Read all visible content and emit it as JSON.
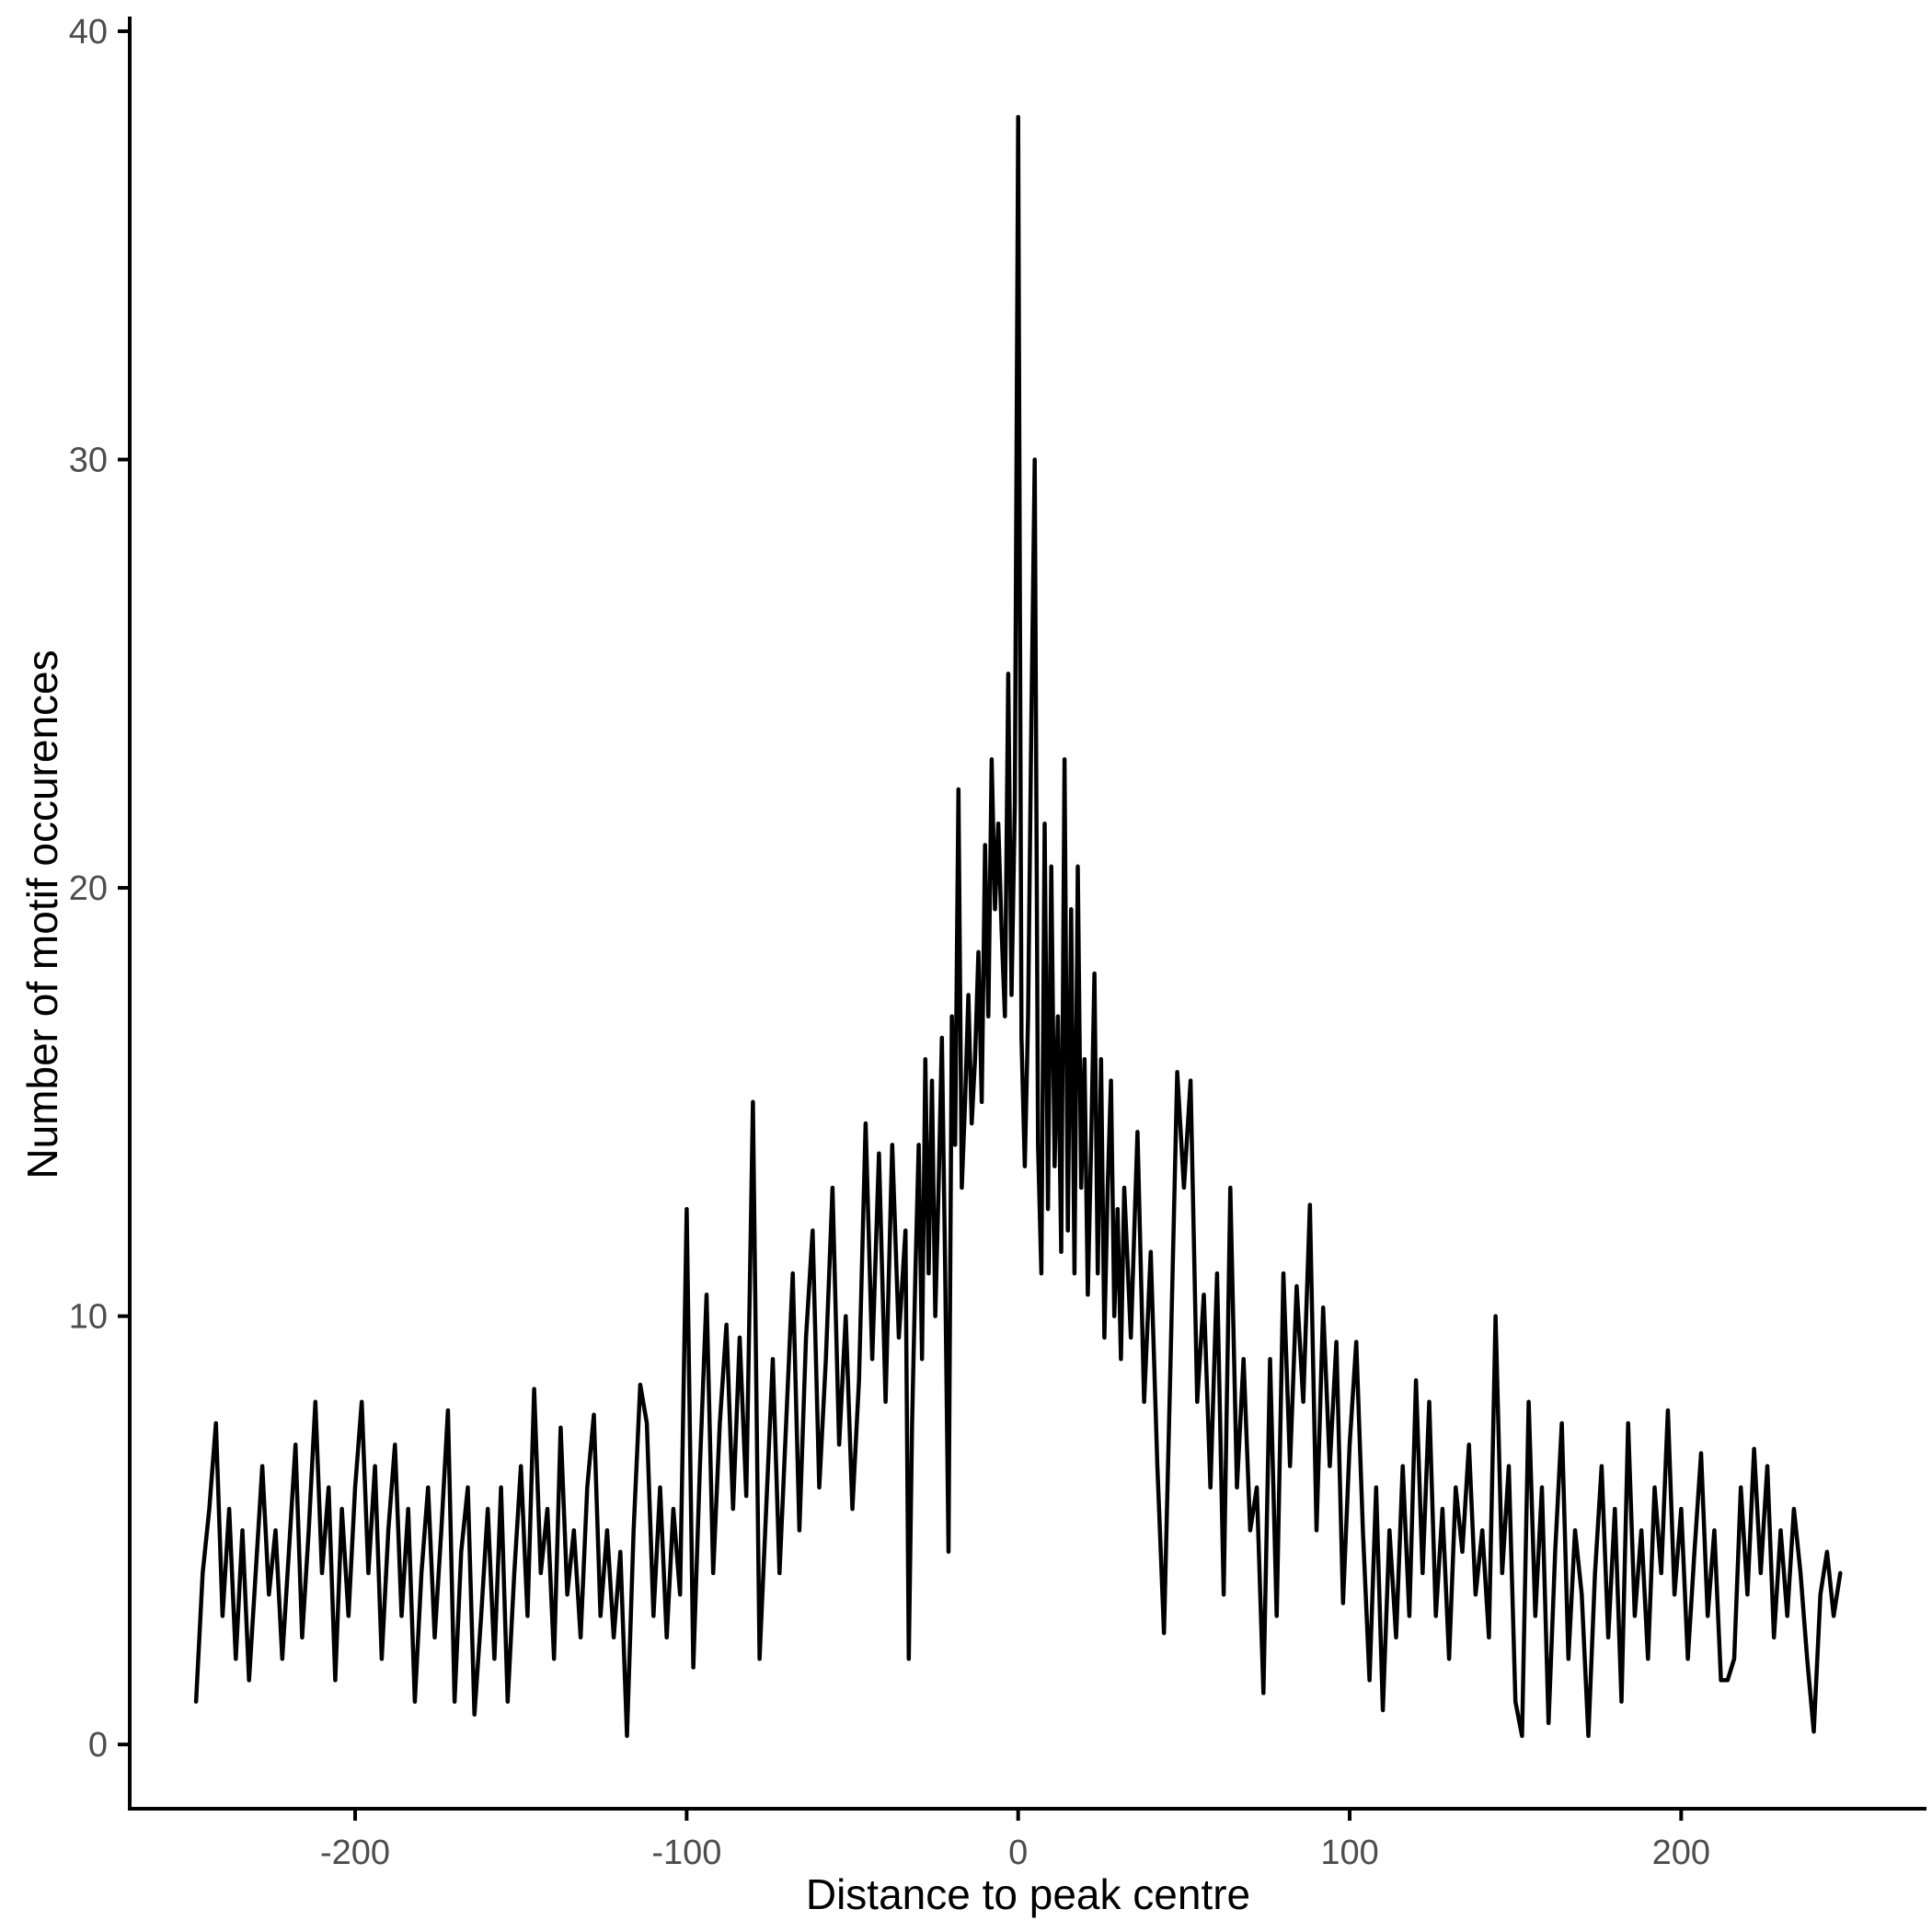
{
  "figure": {
    "background": "#FFFFFF"
  },
  "chart_data": {
    "type": "line",
    "title": "",
    "xlabel": "Distance to peak centre",
    "ylabel": "Number of motif occurences",
    "x_ticks": [
      "-200",
      "-100",
      "0",
      "100",
      "200"
    ],
    "x_tick_values": [
      -200,
      -100,
      0,
      100,
      200
    ],
    "y_ticks": [
      "0",
      "10",
      "20",
      "30",
      "40"
    ],
    "y_tick_values": [
      0,
      10,
      20,
      30,
      40
    ],
    "xlim": [
      -268,
      274
    ],
    "ylim": [
      -1.5,
      40.3
    ],
    "grid": false,
    "legend": "none",
    "line_color": "#000000",
    "axis_color": "#000000",
    "tick_label_color": "#4D4D4D",
    "peak": {
      "x": 0,
      "y": 38
    },
    "points": [
      [
        -248,
        1
      ],
      [
        -246,
        4
      ],
      [
        -244,
        5.5
      ],
      [
        -242,
        7.5
      ],
      [
        -240,
        3
      ],
      [
        -238,
        5.5
      ],
      [
        -236,
        2
      ],
      [
        -234,
        5
      ],
      [
        -232,
        1.5
      ],
      [
        -230,
        4
      ],
      [
        -228,
        6.5
      ],
      [
        -226,
        3.5
      ],
      [
        -224,
        5
      ],
      [
        -222,
        2
      ],
      [
        -220,
        4.5
      ],
      [
        -218,
        7
      ],
      [
        -216,
        2.5
      ],
      [
        -214,
        5
      ],
      [
        -212,
        8
      ],
      [
        -210,
        4
      ],
      [
        -208,
        6
      ],
      [
        -206,
        1.5
      ],
      [
        -204,
        5.5
      ],
      [
        -202,
        3
      ],
      [
        -200,
        6
      ],
      [
        -198,
        8
      ],
      [
        -196,
        4
      ],
      [
        -194,
        6.5
      ],
      [
        -192,
        2
      ],
      [
        -190,
        5
      ],
      [
        -188,
        7
      ],
      [
        -186,
        3
      ],
      [
        -184,
        5.5
      ],
      [
        -182,
        1
      ],
      [
        -180,
        4
      ],
      [
        -178,
        6
      ],
      [
        -176,
        2.5
      ],
      [
        -174,
        5
      ],
      [
        -172,
        7.8
      ],
      [
        -170,
        1
      ],
      [
        -168,
        4.5
      ],
      [
        -166,
        6
      ],
      [
        -164,
        0.7
      ],
      [
        -162,
        3
      ],
      [
        -160,
        5.5
      ],
      [
        -158,
        2
      ],
      [
        -156,
        6
      ],
      [
        -154,
        1
      ],
      [
        -152,
        4
      ],
      [
        -150,
        6.5
      ],
      [
        -148,
        3
      ],
      [
        -146,
        8.3
      ],
      [
        -144,
        4
      ],
      [
        -142,
        5.5
      ],
      [
        -140,
        2
      ],
      [
        -138,
        7.4
      ],
      [
        -136,
        3.5
      ],
      [
        -134,
        5
      ],
      [
        -132,
        2.5
      ],
      [
        -130,
        6
      ],
      [
        -128,
        7.7
      ],
      [
        -126,
        3
      ],
      [
        -124,
        5
      ],
      [
        -122,
        2.5
      ],
      [
        -120,
        4.5
      ],
      [
        -118,
        0.2
      ],
      [
        -116,
        5
      ],
      [
        -114,
        8.4
      ],
      [
        -112,
        7.5
      ],
      [
        -110,
        3
      ],
      [
        -108,
        6
      ],
      [
        -106,
        2.5
      ],
      [
        -104,
        5.5
      ],
      [
        -102,
        3.5
      ],
      [
        -100,
        12.5
      ],
      [
        -98,
        1.8
      ],
      [
        -96,
        6.5
      ],
      [
        -94,
        10.5
      ],
      [
        -92,
        4
      ],
      [
        -90,
        7.5
      ],
      [
        -88,
        9.8
      ],
      [
        -86,
        5.5
      ],
      [
        -84,
        9.5
      ],
      [
        -82,
        5.8
      ],
      [
        -80,
        15
      ],
      [
        -78,
        2
      ],
      [
        -76,
        5.5
      ],
      [
        -74,
        9
      ],
      [
        -72,
        4
      ],
      [
        -70,
        7.5
      ],
      [
        -68,
        11
      ],
      [
        -66,
        5
      ],
      [
        -64,
        9.5
      ],
      [
        -62,
        12
      ],
      [
        -60,
        6
      ],
      [
        -58,
        9
      ],
      [
        -56,
        13
      ],
      [
        -54,
        7
      ],
      [
        -52,
        10
      ],
      [
        -50,
        5.5
      ],
      [
        -48,
        8.5
      ],
      [
        -46,
        14.5
      ],
      [
        -44,
        9
      ],
      [
        -42,
        13.8
      ],
      [
        -40,
        8
      ],
      [
        -38,
        14
      ],
      [
        -36,
        9.5
      ],
      [
        -34,
        12
      ],
      [
        -33,
        2
      ],
      [
        -32,
        7.5
      ],
      [
        -31,
        11
      ],
      [
        -30,
        14
      ],
      [
        -29,
        9
      ],
      [
        -28,
        16
      ],
      [
        -27,
        11
      ],
      [
        -26,
        15.5
      ],
      [
        -25,
        10
      ],
      [
        -24,
        13
      ],
      [
        -23,
        16.5
      ],
      [
        -22,
        11
      ],
      [
        -21,
        4.5
      ],
      [
        -20,
        17
      ],
      [
        -19,
        14
      ],
      [
        -18,
        22.3
      ],
      [
        -17,
        13
      ],
      [
        -16,
        15
      ],
      [
        -15,
        17.5
      ],
      [
        -14,
        14.5
      ],
      [
        -13,
        16
      ],
      [
        -12,
        18.5
      ],
      [
        -11,
        15
      ],
      [
        -10,
        21
      ],
      [
        -9,
        17
      ],
      [
        -8,
        23
      ],
      [
        -7,
        19.5
      ],
      [
        -6,
        21.5
      ],
      [
        -5,
        19
      ],
      [
        -4,
        17
      ],
      [
        -3,
        25
      ],
      [
        -2,
        17.5
      ],
      [
        -1,
        22
      ],
      [
        0,
        38
      ],
      [
        1,
        16.5
      ],
      [
        2,
        13.5
      ],
      [
        3,
        17
      ],
      [
        4,
        24
      ],
      [
        5,
        30
      ],
      [
        6,
        14
      ],
      [
        7,
        11
      ],
      [
        8,
        21.5
      ],
      [
        9,
        12.5
      ],
      [
        10,
        20.5
      ],
      [
        11,
        13.5
      ],
      [
        12,
        17
      ],
      [
        13,
        11.5
      ],
      [
        14,
        23
      ],
      [
        15,
        12
      ],
      [
        16,
        19.5
      ],
      [
        17,
        11
      ],
      [
        18,
        20.5
      ],
      [
        19,
        13
      ],
      [
        20,
        16
      ],
      [
        21,
        10.5
      ],
      [
        22,
        14
      ],
      [
        23,
        18
      ],
      [
        24,
        11
      ],
      [
        25,
        16
      ],
      [
        26,
        9.5
      ],
      [
        27,
        13
      ],
      [
        28,
        15.5
      ],
      [
        29,
        10
      ],
      [
        30,
        12.5
      ],
      [
        31,
        9
      ],
      [
        32,
        13
      ],
      [
        34,
        9.5
      ],
      [
        36,
        14.3
      ],
      [
        38,
        8
      ],
      [
        40,
        11.5
      ],
      [
        42,
        6.5
      ],
      [
        44,
        2.6
      ],
      [
        46,
        9
      ],
      [
        48,
        15.7
      ],
      [
        50,
        13
      ],
      [
        52,
        15.5
      ],
      [
        54,
        8
      ],
      [
        56,
        10.5
      ],
      [
        58,
        6
      ],
      [
        60,
        11
      ],
      [
        62,
        3.5
      ],
      [
        64,
        13
      ],
      [
        66,
        6
      ],
      [
        68,
        9
      ],
      [
        70,
        5
      ],
      [
        72,
        6
      ],
      [
        74,
        1.2
      ],
      [
        76,
        9
      ],
      [
        78,
        3
      ],
      [
        80,
        11
      ],
      [
        82,
        6.5
      ],
      [
        84,
        10.7
      ],
      [
        86,
        8
      ],
      [
        88,
        12.6
      ],
      [
        90,
        5
      ],
      [
        92,
        10.2
      ],
      [
        94,
        6.5
      ],
      [
        96,
        9.4
      ],
      [
        98,
        3.3
      ],
      [
        100,
        7
      ],
      [
        102,
        9.4
      ],
      [
        104,
        5
      ],
      [
        106,
        1.5
      ],
      [
        108,
        6
      ],
      [
        110,
        0.8
      ],
      [
        112,
        5
      ],
      [
        114,
        2.5
      ],
      [
        116,
        6.5
      ],
      [
        118,
        3
      ],
      [
        120,
        8.5
      ],
      [
        122,
        4
      ],
      [
        124,
        8
      ],
      [
        126,
        3
      ],
      [
        128,
        5.5
      ],
      [
        130,
        2
      ],
      [
        132,
        6
      ],
      [
        134,
        4.5
      ],
      [
        136,
        7
      ],
      [
        138,
        3.5
      ],
      [
        140,
        5
      ],
      [
        142,
        2.5
      ],
      [
        144,
        10
      ],
      [
        146,
        4
      ],
      [
        148,
        6.5
      ],
      [
        150,
        1
      ],
      [
        152,
        0.2
      ],
      [
        154,
        8
      ],
      [
        156,
        3
      ],
      [
        158,
        6
      ],
      [
        160,
        0.5
      ],
      [
        162,
        4.5
      ],
      [
        164,
        7.5
      ],
      [
        166,
        2
      ],
      [
        168,
        5
      ],
      [
        170,
        3.5
      ],
      [
        172,
        0.2
      ],
      [
        174,
        4
      ],
      [
        176,
        6.5
      ],
      [
        178,
        2.5
      ],
      [
        180,
        5.5
      ],
      [
        182,
        1
      ],
      [
        184,
        7.5
      ],
      [
        186,
        3
      ],
      [
        188,
        5
      ],
      [
        190,
        2
      ],
      [
        192,
        6
      ],
      [
        194,
        4
      ],
      [
        196,
        7.8
      ],
      [
        198,
        3.5
      ],
      [
        200,
        5.5
      ],
      [
        202,
        2
      ],
      [
        204,
        4.5
      ],
      [
        206,
        6.8
      ],
      [
        208,
        3
      ],
      [
        210,
        5
      ],
      [
        212,
        1.5
      ],
      [
        214,
        1.5
      ],
      [
        216,
        2
      ],
      [
        218,
        6
      ],
      [
        220,
        3.5
      ],
      [
        222,
        6.9
      ],
      [
        224,
        4
      ],
      [
        226,
        6.5
      ],
      [
        228,
        2.5
      ],
      [
        230,
        5
      ],
      [
        232,
        3
      ],
      [
        234,
        5.5
      ],
      [
        236,
        4
      ],
      [
        238,
        2
      ],
      [
        240,
        0.3
      ],
      [
        242,
        3.5
      ],
      [
        244,
        4.5
      ],
      [
        246,
        3
      ],
      [
        248,
        4
      ]
    ]
  }
}
